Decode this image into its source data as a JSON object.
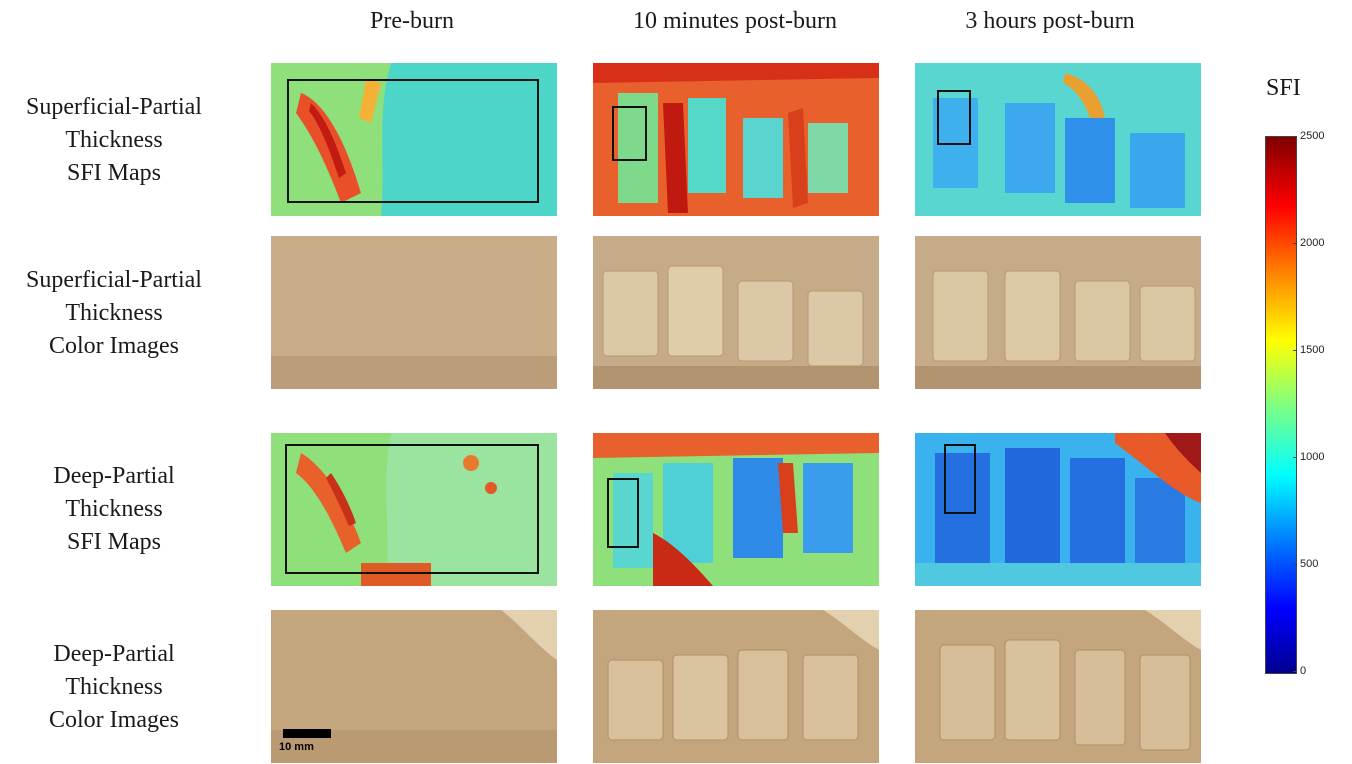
{
  "columns": [
    "Pre-burn",
    "10 minutes post-burn",
    "3 hours post-burn"
  ],
  "rows": [
    {
      "lines": [
        "Superficial-Partial",
        "Thickness",
        "SFI Maps"
      ]
    },
    {
      "lines": [
        "Superficial-Partial",
        "Thickness",
        "Color Images"
      ]
    },
    {
      "lines": [
        "Deep-Partial",
        "Thickness",
        "SFI Maps"
      ]
    },
    {
      "lines": [
        "Deep-Partial",
        "Thickness",
        "Color Images"
      ]
    }
  ],
  "colorbar": {
    "title": "SFI",
    "ticks": [
      "2500",
      "2000",
      "1500",
      "1000",
      "500",
      "0"
    ],
    "colormap": [
      "#00008f",
      "#0000ff",
      "#0080ff",
      "#00ffff",
      "#80ff80",
      "#ffff00",
      "#ff8000",
      "#ff0000",
      "#800000"
    ]
  },
  "scale_bar": {
    "label": "10 mm"
  }
}
